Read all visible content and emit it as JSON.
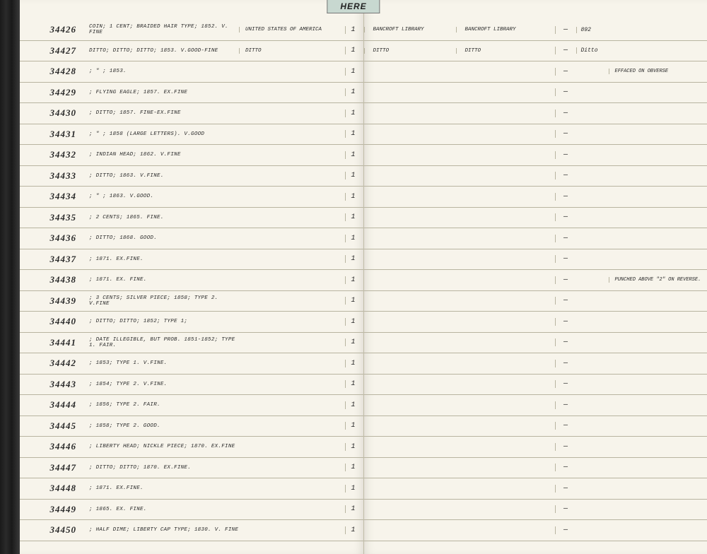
{
  "tab_label": "HERE",
  "rows": [
    {
      "id": "34426",
      "desc": "Coin; 1 cent; braided hair type; 1852. V. Fine",
      "origin": "United States of America",
      "qty": "1",
      "lib1": "Bancroft Library",
      "lib2": "Bancroft Library",
      "dash": "—",
      "num": "892",
      "note": ""
    },
    {
      "id": "34427",
      "desc": "Ditto; Ditto; Ditto; 1853. V.Good-Fine",
      "origin": "Ditto",
      "qty": "1",
      "lib1": "Ditto",
      "lib2": "Ditto",
      "dash": "—",
      "num": "Ditto",
      "note": ""
    },
    {
      "id": "34428",
      "desc": "; \" ; 1853.",
      "origin": "",
      "qty": "1",
      "lib1": "",
      "lib2": "",
      "dash": "—",
      "num": "",
      "note": "Effaced on obverse"
    },
    {
      "id": "34429",
      "desc": "; Flying Eagle; 1857. Ex.Fine",
      "origin": "",
      "qty": "1",
      "lib1": "",
      "lib2": "",
      "dash": "—",
      "num": "",
      "note": ""
    },
    {
      "id": "34430",
      "desc": "; Ditto; 1857. Fine-ex.fine",
      "origin": "",
      "qty": "1",
      "lib1": "",
      "lib2": "",
      "dash": "—",
      "num": "",
      "note": ""
    },
    {
      "id": "34431",
      "desc": "; \" ; 1858 (large letters). V.Good",
      "origin": "",
      "qty": "1",
      "lib1": "",
      "lib2": "",
      "dash": "—",
      "num": "",
      "note": ""
    },
    {
      "id": "34432",
      "desc": "; Indian Head; 1862. V.Fine",
      "origin": "",
      "qty": "1",
      "lib1": "",
      "lib2": "",
      "dash": "—",
      "num": "",
      "note": ""
    },
    {
      "id": "34433",
      "desc": "; Ditto; 1863. V.Fine.",
      "origin": "",
      "qty": "1",
      "lib1": "",
      "lib2": "",
      "dash": "—",
      "num": "",
      "note": ""
    },
    {
      "id": "34434",
      "desc": "; \" ; 1863. V.Good.",
      "origin": "",
      "qty": "1",
      "lib1": "",
      "lib2": "",
      "dash": "—",
      "num": "",
      "note": ""
    },
    {
      "id": "34435",
      "desc": "; 2 cents; 1865. Fine.",
      "origin": "",
      "qty": "1",
      "lib1": "",
      "lib2": "",
      "dash": "—",
      "num": "",
      "note": ""
    },
    {
      "id": "34436",
      "desc": "; Ditto; 1868. Good.",
      "origin": "",
      "qty": "1",
      "lib1": "",
      "lib2": "",
      "dash": "—",
      "num": "",
      "note": ""
    },
    {
      "id": "34437",
      "desc": "; 1871. Ex.Fine.",
      "origin": "",
      "qty": "1",
      "lib1": "",
      "lib2": "",
      "dash": "—",
      "num": "",
      "note": ""
    },
    {
      "id": "34438",
      "desc": "; 1871. Ex. Fine.",
      "origin": "",
      "qty": "1",
      "lib1": "",
      "lib2": "",
      "dash": "—",
      "num": "",
      "note": "Punched above \"2\" on reverse."
    },
    {
      "id": "34439",
      "desc": "; 3 cents; silver piece; 1858; type 2. V.Fine",
      "origin": "",
      "qty": "1",
      "lib1": "",
      "lib2": "",
      "dash": "—",
      "num": "",
      "note": ""
    },
    {
      "id": "34440",
      "desc": "; Ditto; Ditto; 1852; type 1;",
      "origin": "",
      "qty": "1",
      "lib1": "",
      "lib2": "",
      "dash": "—",
      "num": "",
      "note": ""
    },
    {
      "id": "34441",
      "desc": "; date illegible, but prob. 1851-1852; type 1. Fair.",
      "origin": "",
      "qty": "1",
      "lib1": "",
      "lib2": "",
      "dash": "—",
      "num": "",
      "note": ""
    },
    {
      "id": "34442",
      "desc": "; 1853; type 1. V.Fine.",
      "origin": "",
      "qty": "1",
      "lib1": "",
      "lib2": "",
      "dash": "—",
      "num": "",
      "note": ""
    },
    {
      "id": "34443",
      "desc": "; 1854; type 2. V.Fine.",
      "origin": "",
      "qty": "1",
      "lib1": "",
      "lib2": "",
      "dash": "—",
      "num": "",
      "note": ""
    },
    {
      "id": "34444",
      "desc": "; 1856; type 2. Fair.",
      "origin": "",
      "qty": "1",
      "lib1": "",
      "lib2": "",
      "dash": "—",
      "num": "",
      "note": ""
    },
    {
      "id": "34445",
      "desc": "; 1858; type 2. Good.",
      "origin": "",
      "qty": "1",
      "lib1": "",
      "lib2": "",
      "dash": "—",
      "num": "",
      "note": ""
    },
    {
      "id": "34446",
      "desc": "; Liberty head; nickle piece; 1870. Ex.Fine",
      "origin": "",
      "qty": "1",
      "lib1": "",
      "lib2": "",
      "dash": "—",
      "num": "",
      "note": ""
    },
    {
      "id": "34447",
      "desc": "; Ditto; Ditto; 1870. Ex.Fine.",
      "origin": "",
      "qty": "1",
      "lib1": "",
      "lib2": "",
      "dash": "—",
      "num": "",
      "note": ""
    },
    {
      "id": "34448",
      "desc": "; 1871. Ex.Fine.",
      "origin": "",
      "qty": "1",
      "lib1": "",
      "lib2": "",
      "dash": "—",
      "num": "",
      "note": ""
    },
    {
      "id": "34449",
      "desc": "; 1865. Ex. Fine.",
      "origin": "",
      "qty": "1",
      "lib1": "",
      "lib2": "",
      "dash": "—",
      "num": "",
      "note": ""
    },
    {
      "id": "34450",
      "desc": "; Half dime; Liberty cap type; 1830. V. Fine",
      "origin": "",
      "qty": "1",
      "lib1": "",
      "lib2": "",
      "dash": "—",
      "num": "",
      "note": ""
    }
  ]
}
